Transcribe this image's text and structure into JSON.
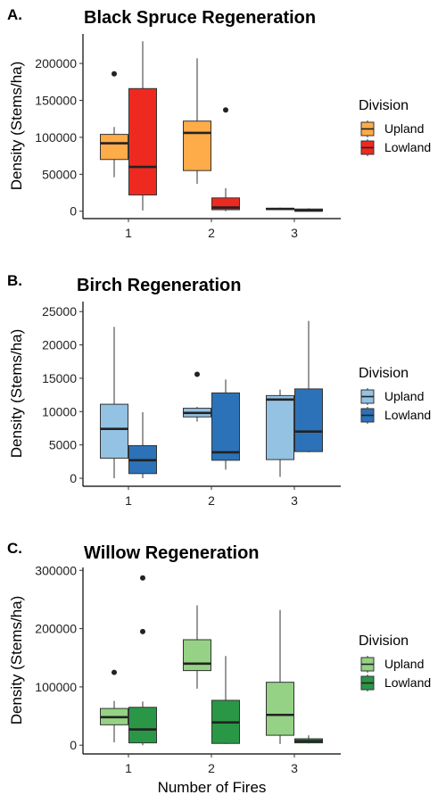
{
  "chart_data": [
    {
      "type": "boxplot",
      "panel_letter": "A.",
      "title": "Black Spruce Regeneration",
      "ylabel": "Density (Stems/ha)",
      "xlabel": "",
      "ylim": [
        -10000,
        240000
      ],
      "yticks": [
        0,
        50000,
        100000,
        150000,
        200000
      ],
      "categories": [
        "1",
        "2",
        "3"
      ],
      "legend": {
        "title": "Division",
        "position": "right",
        "entries": [
          {
            "label": "Upland",
            "color": "#feab49"
          },
          {
            "label": "Lowland",
            "color": "#ee2a20"
          }
        ]
      },
      "series": [
        {
          "name": "Upland",
          "color": "#feab49",
          "boxes": [
            {
              "category": "1",
              "min": 46000,
              "q1": 70000,
              "median": 92000,
              "q3": 104000,
              "max": 114000,
              "outliers": [
                186000
              ]
            },
            {
              "category": "2",
              "min": 37000,
              "q1": 55000,
              "median": 106000,
              "q3": 122000,
              "max": 207000,
              "outliers": []
            },
            {
              "category": "3",
              "min": 2000,
              "q1": 2500,
              "median": 3000,
              "q3": 4000,
              "max": 5000,
              "outliers": []
            }
          ]
        },
        {
          "name": "Lowland",
          "color": "#ee2a20",
          "boxes": [
            {
              "category": "1",
              "min": 1000,
              "q1": 22000,
              "median": 60000,
              "q3": 166000,
              "max": 230000,
              "outliers": []
            },
            {
              "category": "2",
              "min": 0,
              "q1": 2000,
              "median": 5000,
              "q3": 18000,
              "max": 31000,
              "outliers": [
                137000
              ]
            },
            {
              "category": "3",
              "min": 0,
              "q1": 0,
              "median": 1000,
              "q3": 3000,
              "max": 4000,
              "outliers": []
            }
          ]
        }
      ]
    },
    {
      "type": "boxplot",
      "panel_letter": "B.",
      "title": "Birch Regeneration",
      "ylabel": "Density (Stems/ha)",
      "xlabel": "",
      "ylim": [
        -1200,
        26500
      ],
      "yticks": [
        0,
        5000,
        10000,
        15000,
        20000,
        25000
      ],
      "categories": [
        "1",
        "2",
        "3"
      ],
      "legend": {
        "title": "Division",
        "position": "right",
        "entries": [
          {
            "label": "Upland",
            "color": "#93c2e2"
          },
          {
            "label": "Lowland",
            "color": "#2c72b8"
          }
        ]
      },
      "series": [
        {
          "name": "Upland",
          "color": "#93c2e2",
          "boxes": [
            {
              "category": "1",
              "min": 0,
              "q1": 3000,
              "median": 7400,
              "q3": 11100,
              "max": 22700,
              "outliers": []
            },
            {
              "category": "2",
              "min": 8500,
              "q1": 9200,
              "median": 9800,
              "q3": 10500,
              "max": 10700,
              "outliers": [
                15600
              ]
            },
            {
              "category": "3",
              "min": 200,
              "q1": 2800,
              "median": 11800,
              "q3": 12400,
              "max": 13300,
              "outliers": []
            }
          ]
        },
        {
          "name": "Lowland",
          "color": "#2c72b8",
          "boxes": [
            {
              "category": "1",
              "min": 0,
              "q1": 700,
              "median": 2700,
              "q3": 4900,
              "max": 9900,
              "outliers": []
            },
            {
              "category": "2",
              "min": 1300,
              "q1": 2700,
              "median": 3900,
              "q3": 12800,
              "max": 14800,
              "outliers": []
            },
            {
              "category": "3",
              "min": 3900,
              "q1": 4000,
              "median": 7000,
              "q3": 13400,
              "max": 23600,
              "outliers": []
            }
          ]
        }
      ]
    },
    {
      "type": "boxplot",
      "panel_letter": "C.",
      "title": "Willow Regeneration",
      "ylabel": "Density (Stems/ha)",
      "xlabel": "Number of Fires",
      "ylim": [
        -15000,
        305000
      ],
      "yticks": [
        0,
        100000,
        200000,
        300000
      ],
      "categories": [
        "1",
        "2",
        "3"
      ],
      "legend": {
        "title": "Division",
        "position": "right",
        "entries": [
          {
            "label": "Upland",
            "color": "#95d285"
          },
          {
            "label": "Lowland",
            "color": "#2a9747"
          }
        ]
      },
      "series": [
        {
          "name": "Upland",
          "color": "#95d285",
          "boxes": [
            {
              "category": "1",
              "min": 5000,
              "q1": 35000,
              "median": 48000,
              "q3": 63000,
              "max": 76000,
              "outliers": [
                125000
              ]
            },
            {
              "category": "2",
              "min": 97000,
              "q1": 128000,
              "median": 140000,
              "q3": 181000,
              "max": 240000,
              "outliers": []
            },
            {
              "category": "3",
              "min": 2000,
              "q1": 17000,
              "median": 52000,
              "q3": 108000,
              "max": 232000,
              "outliers": []
            }
          ]
        },
        {
          "name": "Lowland",
          "color": "#2a9747",
          "boxes": [
            {
              "category": "1",
              "min": 0,
              "q1": 4000,
              "median": 27000,
              "q3": 65000,
              "max": 75000,
              "outliers": [
                195000,
                287000
              ]
            },
            {
              "category": "2",
              "min": 2000,
              "q1": 3000,
              "median": 39000,
              "q3": 77000,
              "max": 153000,
              "outliers": []
            },
            {
              "category": "3",
              "min": 3000,
              "q1": 4000,
              "median": 7000,
              "q3": 11000,
              "max": 17000,
              "outliers": []
            }
          ]
        }
      ]
    }
  ]
}
